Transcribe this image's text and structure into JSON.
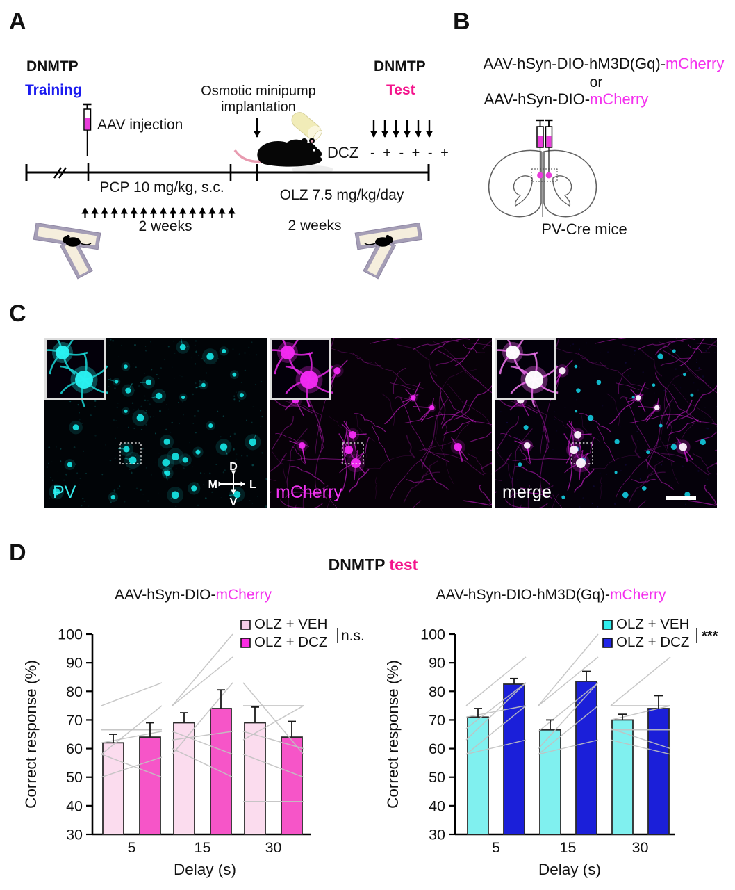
{
  "figure": {
    "panel_a": {
      "label": "A",
      "training_phase": {
        "line1": "DNMTP",
        "line2": "Training"
      },
      "test_phase": {
        "line1": "DNMTP",
        "line2": "Test"
      },
      "aav_injection": "AAV injection",
      "osmotic_pump": {
        "line1": "Osmotic minipump",
        "line2": "implantation"
      },
      "dcz_label": "DCZ",
      "dcz_schedule": "- + - + - +",
      "pcp_label": "PCP 10 mg/kg, s.c.",
      "pcp_duration": "2 weeks",
      "olz_label": "OLZ 7.5 mg/kg/day",
      "olz_duration": "2 weeks"
    },
    "panel_b": {
      "label": "B",
      "construct1": {
        "black": "AAV-hSyn-DIO-hM3D(Gq)-",
        "magenta": "mCherry"
      },
      "conjunction": "or",
      "construct2": {
        "black": "AAV-hSyn-DIO-",
        "magenta": "mCherry"
      },
      "mouse_line": "PV-Cre mice"
    },
    "panel_c": {
      "label": "C",
      "channels": [
        {
          "name": "PV",
          "label_color": "#35ecee"
        },
        {
          "name": "mCherry",
          "label_color": "#f233f2"
        },
        {
          "name": "merge",
          "label_color": "#ffffff"
        }
      ],
      "compass": {
        "up": "D",
        "down": "V",
        "left": "M",
        "right": "L"
      }
    },
    "panel_d": {
      "label": "D",
      "title": {
        "black": "DNMTP",
        "pink": "test"
      }
    }
  },
  "chart_data": [
    {
      "type": "bar",
      "title": {
        "black": "AAV-hSyn-DIO-",
        "magenta": "mCherry"
      },
      "categories": [
        "5",
        "15",
        "30"
      ],
      "xlabel": "Delay (s)",
      "ylabel": "Correct response (%)",
      "ylim": [
        30,
        100
      ],
      "yticks": [
        30,
        40,
        50,
        60,
        70,
        80,
        90,
        100
      ],
      "grid": false,
      "legend_position": "top-right",
      "series": [
        {
          "name": "OLZ + VEH",
          "color": "#fbdcee",
          "swatch": "#f6cfe9",
          "values": [
            62,
            69,
            69
          ],
          "errors": [
            3,
            3.5,
            5.5
          ]
        },
        {
          "name": "OLZ + DCZ",
          "color": "#f655c8",
          "swatch": "#fa2ce2",
          "values": [
            64,
            74,
            64
          ],
          "errors": [
            5,
            6.5,
            5.5
          ]
        }
      ],
      "annotation": "n.s.",
      "individual_pairs": [
        [
          [
            75,
            83
          ],
          [
            66.5,
            66.5
          ],
          [
            58,
            75
          ],
          [
            58,
            50
          ],
          [
            50,
            57
          ],
          [
            62,
            66
          ]
        ],
        [
          [
            75,
            100
          ],
          [
            75,
            92
          ],
          [
            58,
            83
          ],
          [
            66,
            58
          ],
          [
            60,
            50
          ],
          [
            63,
            66
          ]
        ],
        [
          [
            75,
            75
          ],
          [
            83,
            58
          ],
          [
            63,
            75
          ],
          [
            66,
            60
          ],
          [
            41.5,
            41.5
          ],
          [
            58,
            50
          ]
        ]
      ]
    },
    {
      "type": "bar",
      "title": {
        "black": "AAV-hSyn-DIO-hM3D(Gq)-",
        "magenta": "mCherry"
      },
      "categories": [
        "5",
        "15",
        "30"
      ],
      "xlabel": "Delay (s)",
      "ylabel": "Correct response (%)",
      "ylim": [
        30,
        100
      ],
      "yticks": [
        30,
        40,
        50,
        60,
        70,
        80,
        90,
        100
      ],
      "grid": false,
      "legend_position": "top-right",
      "series": [
        {
          "name": "OLZ + VEH",
          "color": "#80f0ef",
          "swatch": "#2eeeee",
          "values": [
            71,
            66.5,
            70
          ],
          "errors": [
            3,
            3.5,
            2
          ]
        },
        {
          "name": "OLZ + DCZ",
          "color": "#1b1fd9",
          "swatch": "#2125e8",
          "values": [
            82.5,
            83.5,
            74
          ],
          "errors": [
            2,
            3.5,
            4.5
          ]
        }
      ],
      "annotation": "***",
      "individual_pairs": [
        [
          [
            75,
            92
          ],
          [
            67,
            83
          ],
          [
            58,
            75
          ],
          [
            63,
            83
          ],
          [
            71,
            75
          ],
          [
            58,
            63
          ]
        ],
        [
          [
            75,
            100
          ],
          [
            75,
            92
          ],
          [
            60,
            83
          ],
          [
            58,
            75
          ],
          [
            66,
            83
          ],
          [
            58,
            63
          ]
        ],
        [
          [
            75,
            92
          ],
          [
            70,
            75
          ],
          [
            66.5,
            66.5
          ],
          [
            63,
            58
          ],
          [
            75,
            75
          ],
          [
            67,
            60
          ]
        ]
      ]
    }
  ],
  "colors": {
    "training_blue": "#1b1bf0",
    "test_pink": "#f4148c",
    "mcherry_magenta": "#f430ee",
    "syringe_magenta": "#e93cdb",
    "individual_line_gray": "#c2c2c2",
    "bar_outline": "#2b2b2b",
    "error_bar": "#1a1a1a",
    "micro_cyan": "#18e8e8",
    "micro_magenta": "#e520e5"
  }
}
